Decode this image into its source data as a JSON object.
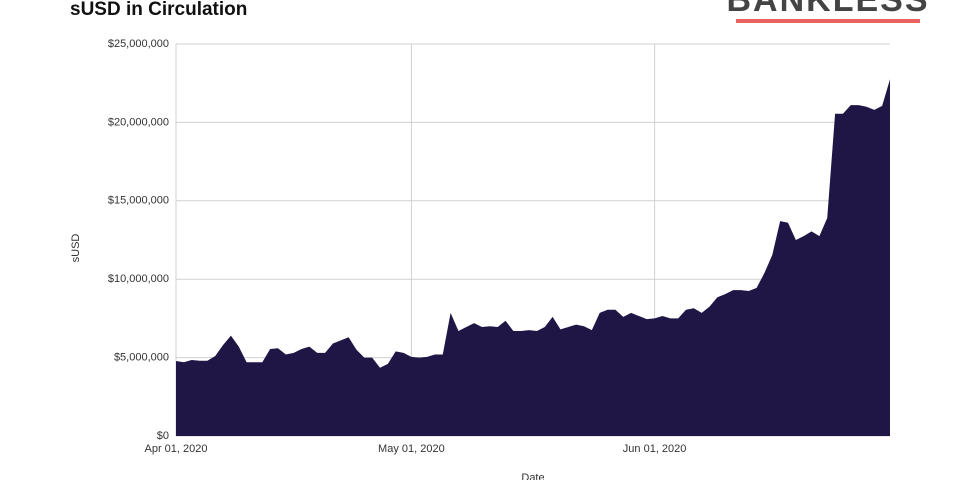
{
  "chart_data": {
    "type": "area",
    "title": "sUSD in Circulation",
    "logo": "BANKLESS",
    "xlabel": "Date",
    "ylabel": "sUSD",
    "x": [
      "2020-04-01",
      "2020-04-02",
      "2020-04-03",
      "2020-04-04",
      "2020-04-05",
      "2020-04-06",
      "2020-04-07",
      "2020-04-08",
      "2020-04-09",
      "2020-04-10",
      "2020-04-11",
      "2020-04-12",
      "2020-04-13",
      "2020-04-14",
      "2020-04-15",
      "2020-04-16",
      "2020-04-17",
      "2020-04-18",
      "2020-04-19",
      "2020-04-20",
      "2020-04-21",
      "2020-04-22",
      "2020-04-23",
      "2020-04-24",
      "2020-04-25",
      "2020-04-26",
      "2020-04-27",
      "2020-04-28",
      "2020-04-29",
      "2020-04-30",
      "2020-05-01",
      "2020-05-02",
      "2020-05-03",
      "2020-05-04",
      "2020-05-05",
      "2020-05-06",
      "2020-05-07",
      "2020-05-08",
      "2020-05-09",
      "2020-05-10",
      "2020-05-11",
      "2020-05-12",
      "2020-05-13",
      "2020-05-14",
      "2020-05-15",
      "2020-05-16",
      "2020-05-17",
      "2020-05-18",
      "2020-05-19",
      "2020-05-20",
      "2020-05-21",
      "2020-05-22",
      "2020-05-23",
      "2020-05-24",
      "2020-05-25",
      "2020-05-26",
      "2020-05-27",
      "2020-05-28",
      "2020-05-29",
      "2020-05-30",
      "2020-05-31",
      "2020-06-01",
      "2020-06-02",
      "2020-06-03",
      "2020-06-04",
      "2020-06-05",
      "2020-06-06",
      "2020-06-07",
      "2020-06-08",
      "2020-06-09",
      "2020-06-10",
      "2020-06-11",
      "2020-06-12",
      "2020-06-13",
      "2020-06-14",
      "2020-06-15",
      "2020-06-16",
      "2020-06-17",
      "2020-06-18",
      "2020-06-19",
      "2020-06-20",
      "2020-06-21",
      "2020-06-22",
      "2020-06-23",
      "2020-06-24",
      "2020-06-25",
      "2020-06-26",
      "2020-06-27",
      "2020-06-28",
      "2020-06-29",
      "2020-06-30",
      "2020-07-01"
    ],
    "series": [
      {
        "name": "sUSD",
        "color": "#1f1646",
        "values": [
          4780000,
          4700000,
          4850000,
          4800000,
          4800000,
          5100000,
          5800000,
          6400000,
          5700000,
          4700000,
          4700000,
          4700000,
          5550000,
          5600000,
          5200000,
          5300000,
          5550000,
          5700000,
          5300000,
          5300000,
          5900000,
          6100000,
          6300000,
          5500000,
          5000000,
          5000000,
          4350000,
          4600000,
          5400000,
          5300000,
          5050000,
          5000000,
          5050000,
          5200000,
          5200000,
          7850000,
          6700000,
          6950000,
          7200000,
          6950000,
          7000000,
          6950000,
          7350000,
          6700000,
          6700000,
          6750000,
          6700000,
          6950000,
          7600000,
          6800000,
          6950000,
          7100000,
          7000000,
          6750000,
          7850000,
          8050000,
          8050000,
          7600000,
          7850000,
          7650000,
          7450000,
          7500000,
          7650000,
          7500000,
          7500000,
          8050000,
          8150000,
          7850000,
          8250000,
          8850000,
          9050000,
          9300000,
          9300000,
          9250000,
          9450000,
          10400000,
          11550000,
          13700000,
          13600000,
          12500000,
          12750000,
          13050000,
          12750000,
          13900000,
          20550000,
          20550000,
          21100000,
          21100000,
          21000000,
          20800000,
          21050000,
          22750000
        ]
      }
    ],
    "xlim": [
      "2020-04-01",
      "2020-07-01"
    ],
    "xticks": [
      {
        "value": "2020-04-01",
        "label": "Apr 01, 2020"
      },
      {
        "value": "2020-05-01",
        "label": "May 01, 2020"
      },
      {
        "value": "2020-06-01",
        "label": "Jun 01, 2020"
      }
    ],
    "ylim": [
      0,
      25000000
    ],
    "yticks": [
      {
        "value": 0,
        "label": "$0"
      },
      {
        "value": 5000000,
        "label": "$5,000,000"
      },
      {
        "value": 10000000,
        "label": "$10,000,000"
      },
      {
        "value": 15000000,
        "label": "$15,000,000"
      },
      {
        "value": 20000000,
        "label": "$20,000,000"
      },
      {
        "value": 25000000,
        "label": "$25,000,000"
      }
    ],
    "grid": true
  }
}
